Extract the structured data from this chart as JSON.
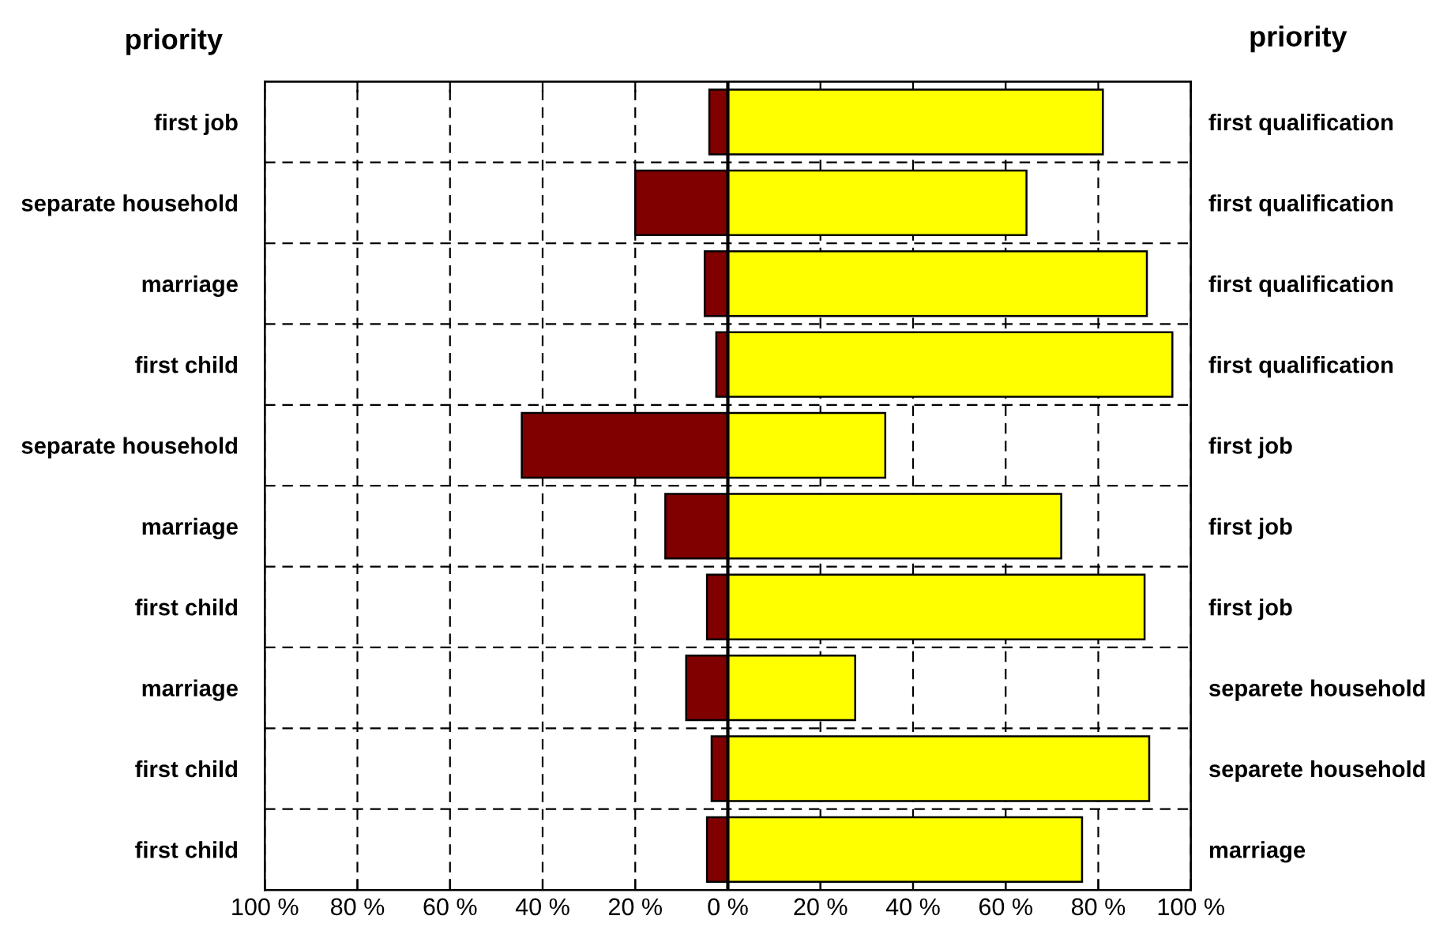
{
  "chart_data": {
    "type": "bar",
    "orientation": "horizontal",
    "stacked": true,
    "ylabel": "priority",
    "y2label": "priority",
    "categories": [
      "first job",
      "separate household",
      "marriage",
      "first child",
      "separate household",
      "marriage",
      "first child",
      "marriage",
      "first child",
      "first child"
    ],
    "y2_categories": [
      "first qualification",
      "first qualification",
      "first qualification",
      "first qualification",
      "first job",
      "first job",
      "first job",
      "separete household",
      "separete household",
      "marriage"
    ],
    "series": [
      {
        "color": "#800000",
        "values": [
          -4,
          -20,
          -5,
          -2.5,
          -44.5,
          -13.5,
          -4.5,
          -9,
          -3.5,
          -4.5
        ]
      },
      {
        "color": "#ffff00",
        "values": [
          81,
          64.5,
          90.5,
          96,
          34,
          72,
          90,
          27.5,
          91,
          76.5
        ]
      }
    ],
    "xlim": [
      -100,
      100
    ],
    "xticks": [
      {
        "value": -100,
        "label": "100 %"
      },
      {
        "value": -80,
        "label": "80 %"
      },
      {
        "value": -60,
        "label": "60 %"
      },
      {
        "value": -40,
        "label": "40 %"
      },
      {
        "value": -20,
        "label": "20 %"
      },
      {
        "value": 0,
        "label": "0 %"
      },
      {
        "value": 20,
        "label": "20 %"
      },
      {
        "value": 40,
        "label": "40 %"
      },
      {
        "value": 60,
        "label": "60 %"
      },
      {
        "value": 80,
        "label": "80 %"
      },
      {
        "value": 100,
        "label": "100 %"
      }
    ],
    "grid": true,
    "line_style": "dashed"
  }
}
